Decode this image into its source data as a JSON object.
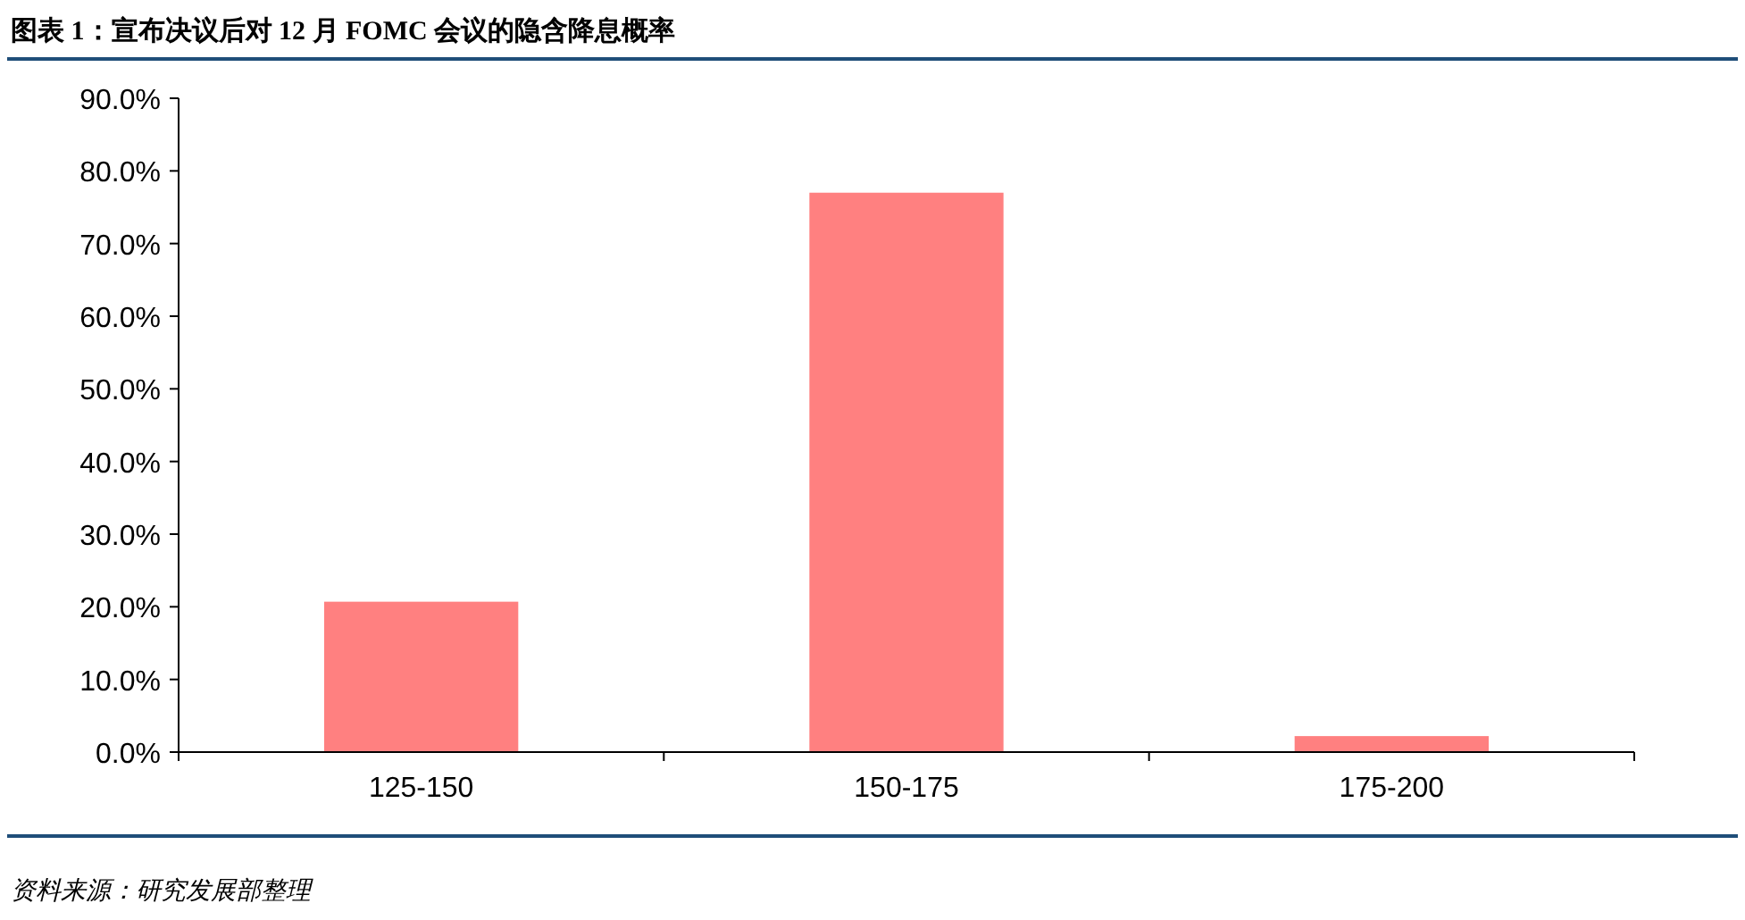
{
  "chart_data": {
    "type": "bar",
    "title": "图表 1：宣布决议后对 12 月 FOMC 会议的隐含降息概率",
    "categories": [
      "125-150",
      "150-175",
      "175-200"
    ],
    "values": [
      20.7,
      77.0,
      2.2
    ],
    "color": "#ff8080",
    "ylim": [
      0,
      90
    ],
    "yticks": [
      {
        "value": 0,
        "label": "0.0%"
      },
      {
        "value": 10,
        "label": "10.0%"
      },
      {
        "value": 20,
        "label": "20.0%"
      },
      {
        "value": 30,
        "label": "30.0%"
      },
      {
        "value": 40,
        "label": "40.0%"
      },
      {
        "value": 50,
        "label": "50.0%"
      },
      {
        "value": 60,
        "label": "60.0%"
      },
      {
        "value": 70,
        "label": "70.0%"
      },
      {
        "value": 80,
        "label": "80.0%"
      },
      {
        "value": 90,
        "label": "90.0%"
      }
    ],
    "grid": false,
    "annotations": [
      "资料来源：研究发展部整理"
    ]
  }
}
